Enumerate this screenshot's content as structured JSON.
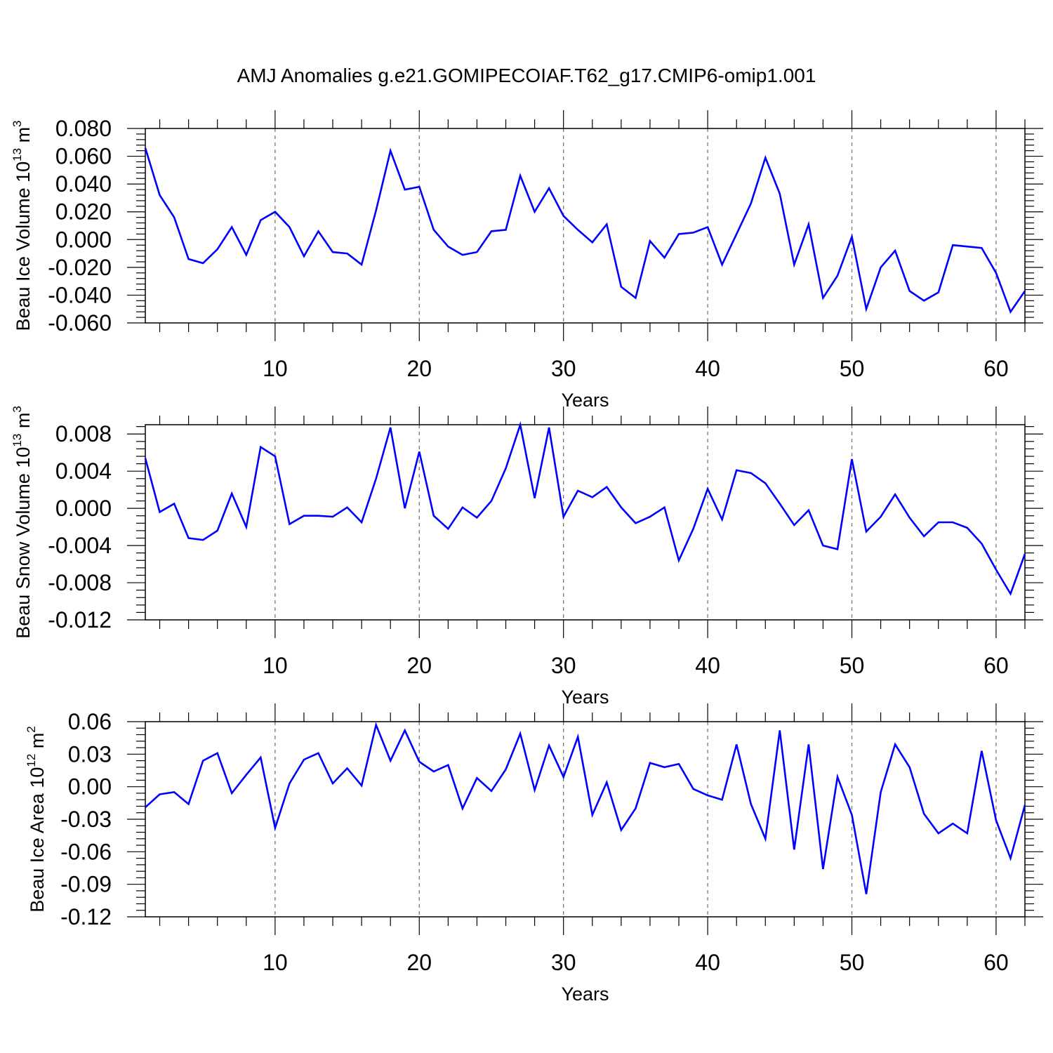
{
  "title": "AMJ Anomalies g.e21.GOMIPECOIAF.T62_g17.CMIP6-omip1.001",
  "line_color": "#0000ff",
  "chart_data": [
    {
      "type": "line",
      "xlabel": "Years",
      "ylabel": {
        "text": "Beau Ice Volume 10",
        "sup": "13",
        "unit": " m",
        "unit_sup": "3"
      },
      "xlim": [
        1,
        62
      ],
      "ylim": [
        -0.06,
        0.08
      ],
      "xticks": [
        10,
        20,
        30,
        40,
        50,
        60
      ],
      "yticks": [
        -0.06,
        -0.04,
        -0.02,
        0.0,
        0.02,
        0.04,
        0.06,
        0.08
      ],
      "yticklabels": [
        "-0.060",
        "-0.040",
        "-0.020",
        "0.000",
        "0.020",
        "0.040",
        "0.060",
        "0.080"
      ],
      "grid": "vertical dashed at major x ticks",
      "x": [
        1,
        2,
        3,
        4,
        5,
        6,
        7,
        8,
        9,
        10,
        11,
        12,
        13,
        14,
        15,
        16,
        17,
        18,
        19,
        20,
        21,
        22,
        23,
        24,
        25,
        26,
        27,
        28,
        29,
        30,
        31,
        32,
        33,
        34,
        35,
        36,
        37,
        38,
        39,
        40,
        41,
        42,
        43,
        44,
        45,
        46,
        47,
        48,
        49,
        50,
        51,
        52,
        53,
        54,
        55,
        56,
        57,
        58,
        59,
        60,
        61,
        62
      ],
      "values": [
        0.066,
        0.032,
        0.016,
        -0.014,
        -0.017,
        -0.007,
        0.009,
        -0.011,
        0.014,
        0.02,
        0.009,
        -0.012,
        0.006,
        -0.009,
        -0.01,
        -0.018,
        0.021,
        0.064,
        0.036,
        0.038,
        0.007,
        -0.005,
        -0.011,
        -0.009,
        0.006,
        0.007,
        0.046,
        0.02,
        0.037,
        0.017,
        0.007,
        -0.002,
        0.011,
        -0.034,
        -0.042,
        -0.001,
        -0.013,
        0.004,
        0.005,
        0.009,
        -0.018,
        0.004,
        0.026,
        0.059,
        0.033,
        -0.018,
        0.011,
        -0.042,
        -0.026,
        0.002,
        -0.05,
        -0.02,
        -0.008,
        -0.037,
        -0.044,
        -0.038,
        -0.004,
        -0.005,
        -0.006,
        -0.024,
        -0.052,
        -0.037
      ]
    },
    {
      "type": "line",
      "xlabel": "Years",
      "ylabel": {
        "text": "Beau Snow Volume 10",
        "sup": "13",
        "unit": " m",
        "unit_sup": "3"
      },
      "xlim": [
        1,
        62
      ],
      "ylim": [
        -0.012,
        0.009
      ],
      "xticks": [
        10,
        20,
        30,
        40,
        50,
        60
      ],
      "yticks": [
        -0.012,
        -0.008,
        -0.004,
        0.0,
        0.004,
        0.008
      ],
      "yticklabels": [
        "-0.012",
        "-0.008",
        "-0.004",
        "0.000",
        "0.004",
        "0.008"
      ],
      "grid": "vertical dashed at major x ticks",
      "x": [
        1,
        2,
        3,
        4,
        5,
        6,
        7,
        8,
        9,
        10,
        11,
        12,
        13,
        14,
        15,
        16,
        17,
        18,
        19,
        20,
        21,
        22,
        23,
        24,
        25,
        26,
        27,
        28,
        29,
        30,
        31,
        32,
        33,
        34,
        35,
        36,
        37,
        38,
        39,
        40,
        41,
        42,
        43,
        44,
        45,
        46,
        47,
        48,
        49,
        50,
        51,
        52,
        53,
        54,
        55,
        56,
        57,
        58,
        59,
        60,
        61,
        62
      ],
      "values": [
        0.0054,
        -0.0004,
        0.0005,
        -0.0032,
        -0.0034,
        -0.0024,
        0.0016,
        -0.002,
        0.0066,
        0.0056,
        -0.0017,
        -0.0008,
        -0.0008,
        -0.0009,
        0.0001,
        -0.0015,
        0.0032,
        0.0087,
        0.0,
        0.0061,
        -0.0008,
        -0.0022,
        0.0001,
        -0.001,
        0.0008,
        0.0043,
        0.009,
        0.0011,
        0.0087,
        -0.0009,
        0.0019,
        0.0012,
        0.0023,
        0.0001,
        -0.0016,
        -0.0009,
        0.0001,
        -0.0056,
        -0.0022,
        0.0021,
        -0.0012,
        0.0041,
        0.0038,
        0.0027,
        0.0005,
        -0.0018,
        -0.0002,
        -0.004,
        -0.0044,
        0.0053,
        -0.0025,
        -0.0009,
        0.0015,
        -0.001,
        -0.003,
        -0.0015,
        -0.0015,
        -0.0021,
        -0.0038,
        -0.0066,
        -0.0092,
        -0.0049
      ]
    },
    {
      "type": "line",
      "xlabel": "Years",
      "ylabel": {
        "text": "Beau Ice Area 10",
        "sup": "12",
        "unit": " m",
        "unit_sup": "2"
      },
      "xlim": [
        1,
        62
      ],
      "ylim": [
        -0.12,
        0.06
      ],
      "xticks": [
        10,
        20,
        30,
        40,
        50,
        60
      ],
      "yticks": [
        -0.12,
        -0.09,
        -0.06,
        -0.03,
        0.0,
        0.03,
        0.06
      ],
      "yticklabels": [
        "-0.12",
        "-0.09",
        "-0.06",
        "-0.03",
        "0.00",
        "0.03",
        "0.06"
      ],
      "grid": "vertical dashed at major x ticks",
      "x": [
        1,
        2,
        3,
        4,
        5,
        6,
        7,
        8,
        9,
        10,
        11,
        12,
        13,
        14,
        15,
        16,
        17,
        18,
        19,
        20,
        21,
        22,
        23,
        24,
        25,
        26,
        27,
        28,
        29,
        30,
        31,
        32,
        33,
        34,
        35,
        36,
        37,
        38,
        39,
        40,
        41,
        42,
        43,
        44,
        45,
        46,
        47,
        48,
        49,
        50,
        51,
        52,
        53,
        54,
        55,
        56,
        57,
        58,
        59,
        60,
        61,
        62
      ],
      "values": [
        -0.019,
        -0.007,
        -0.005,
        -0.016,
        0.024,
        0.031,
        -0.006,
        0.011,
        0.027,
        -0.038,
        0.003,
        0.025,
        0.031,
        0.003,
        0.017,
        0.001,
        0.057,
        0.024,
        0.052,
        0.023,
        0.014,
        0.02,
        -0.02,
        0.008,
        -0.004,
        0.016,
        0.049,
        -0.003,
        0.038,
        0.009,
        0.046,
        -0.026,
        0.004,
        -0.04,
        -0.02,
        0.022,
        0.018,
        0.021,
        -0.002,
        -0.008,
        -0.012,
        0.039,
        -0.016,
        -0.048,
        0.052,
        -0.058,
        0.039,
        -0.076,
        0.009,
        -0.026,
        -0.099,
        -0.005,
        0.039,
        0.018,
        -0.025,
        -0.043,
        -0.034,
        -0.043,
        0.033,
        -0.031,
        -0.066,
        -0.017
      ]
    }
  ]
}
